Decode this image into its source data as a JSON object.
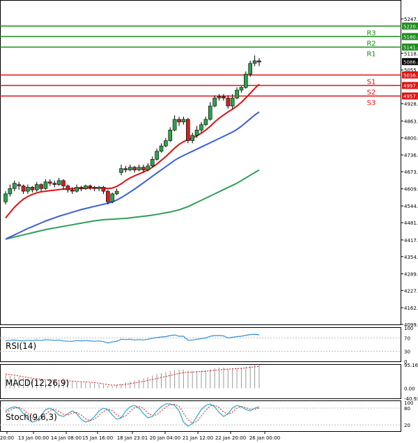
{
  "chart_data": {
    "type": "candlestick",
    "price_ticks": [
      "5247.4",
      "5118.2",
      "5055.5",
      "4928.5",
      "4863.6",
      "4800.4",
      "4736.3",
      "4673.6",
      "4609.0",
      "4544.8",
      "4481.7",
      "4417.1",
      "4354.6",
      "4289.8",
      "4227.1",
      "4162.5",
      "4099.8"
    ],
    "levels": [
      {
        "name": "R3",
        "value": 5220.2,
        "label": "5220.2",
        "color": "#1a8a1a"
      },
      {
        "name": "R2",
        "value": 5180.8,
        "label": "5180.8",
        "color": "#1a8a1a"
      },
      {
        "name": "R1",
        "value": 5141.4,
        "label": "5141.4",
        "color": "#1a8a1a"
      },
      {
        "name": "S1",
        "value": 5036.5,
        "label": "5036.5",
        "color": "#dd1111"
      },
      {
        "name": "S2",
        "value": 4997.1,
        "label": "4997.1",
        "color": "#dd1111"
      },
      {
        "name": "S3",
        "value": 4957.7,
        "label": "4957.7",
        "color": "#dd1111"
      }
    ],
    "current_price": {
      "value": 5086.8,
      "label": "5086.8"
    },
    "x_tick_labels": [
      "20:00",
      "13 Jan 00:00",
      "14 Jan 08:00",
      "15 Jan 16:00",
      "18 Jan 23:01",
      "20 Jan 04:00",
      "21 Jan 12:00",
      "22 Jan 20:00",
      "26 Jan 00:00"
    ],
    "candles": [
      [
        4560,
        4590,
        4550,
        4600
      ],
      [
        4590,
        4610,
        4580,
        4625
      ],
      [
        4610,
        4630,
        4600,
        4640
      ],
      [
        4625,
        4620,
        4605,
        4635
      ],
      [
        4620,
        4600,
        4590,
        4625
      ],
      [
        4600,
        4615,
        4590,
        4625
      ],
      [
        4615,
        4605,
        4595,
        4620
      ],
      [
        4605,
        4625,
        4598,
        4635
      ],
      [
        4625,
        4610,
        4600,
        4630
      ],
      [
        4610,
        4635,
        4605,
        4645
      ],
      [
        4635,
        4630,
        4620,
        4645
      ],
      [
        4630,
        4625,
        4615,
        4640
      ],
      [
        4625,
        4640,
        4620,
        4650
      ],
      [
        4640,
        4620,
        4605,
        4645
      ],
      [
        4620,
        4605,
        4595,
        4625
      ],
      [
        4605,
        4600,
        4590,
        4615
      ],
      [
        4600,
        4615,
        4595,
        4625
      ],
      [
        4615,
        4610,
        4600,
        4620
      ],
      [
        4610,
        4620,
        4605,
        4625
      ],
      [
        4620,
        4615,
        4605,
        4625
      ],
      [
        4615,
        4610,
        4600,
        4620
      ],
      [
        4610,
        4615,
        4600,
        4620
      ],
      [
        4615,
        4600,
        4590,
        4620
      ],
      [
        4600,
        4560,
        4550,
        4605
      ],
      [
        4560,
        4590,
        4555,
        4595
      ],
      [
        4590,
        4600,
        4585,
        4610
      ],
      [
        4670,
        4685,
        4660,
        4700
      ],
      [
        4685,
        4680,
        4670,
        4695
      ],
      [
        4680,
        4690,
        4675,
        4700
      ],
      [
        4690,
        4680,
        4670,
        4695
      ],
      [
        4680,
        4690,
        4675,
        4700
      ],
      [
        4690,
        4680,
        4670,
        4700
      ],
      [
        4680,
        4695,
        4675,
        4705
      ],
      [
        4695,
        4720,
        4690,
        4730
      ],
      [
        4720,
        4750,
        4715,
        4760
      ],
      [
        4750,
        4770,
        4745,
        4780
      ],
      [
        4770,
        4790,
        4765,
        4800
      ],
      [
        4790,
        4830,
        4785,
        4840
      ],
      [
        4830,
        4870,
        4825,
        4885
      ],
      [
        4870,
        4860,
        4845,
        4880
      ],
      [
        4860,
        4870,
        4850,
        4880
      ],
      [
        4870,
        4790,
        4780,
        4875
      ],
      [
        4790,
        4810,
        4780,
        4820
      ],
      [
        4810,
        4830,
        4800,
        4845
      ],
      [
        4830,
        4850,
        4820,
        4860
      ],
      [
        4850,
        4870,
        4845,
        4880
      ],
      [
        4870,
        4920,
        4865,
        4935
      ],
      [
        4920,
        4950,
        4915,
        4960
      ],
      [
        4950,
        4955,
        4940,
        4965
      ],
      [
        4955,
        4950,
        4940,
        4965
      ],
      [
        4950,
        4920,
        4910,
        4960
      ],
      [
        4920,
        4950,
        4910,
        4965
      ],
      [
        4950,
        4980,
        4945,
        4990
      ],
      [
        4980,
        4990,
        4970,
        4995
      ],
      [
        4990,
        5040,
        4985,
        5050
      ],
      [
        5040,
        5080,
        5030,
        5090
      ],
      [
        5080,
        5090,
        5070,
        5110
      ],
      [
        5090,
        5085,
        5070,
        5100
      ]
    ],
    "ma_fast": [
      4500,
      4520,
      4540,
      4556,
      4570,
      4580,
      4588,
      4594,
      4598,
      4600,
      4602,
      4604,
      4606,
      4608,
      4609,
      4610,
      4610,
      4610,
      4611,
      4612,
      4612,
      4612,
      4612,
      4610,
      4612,
      4618,
      4628,
      4640,
      4650,
      4658,
      4665,
      4672,
      4680,
      4690,
      4702,
      4716,
      4730,
      4746,
      4762,
      4776,
      4786,
      4794,
      4800,
      4808,
      4818,
      4830,
      4844,
      4860,
      4874,
      4886,
      4898,
      4908,
      4920,
      4934,
      4950,
      4968,
      4986,
      5002
    ],
    "ma_mid": [
      4420,
      4428,
      4436,
      4444,
      4452,
      4460,
      4467,
      4474,
      4481,
      4488,
      4494,
      4500,
      4506,
      4511,
      4516,
      4521,
      4526,
      4531,
      4535,
      4539,
      4543,
      4547,
      4551,
      4555,
      4560,
      4567,
      4576,
      4586,
      4597,
      4608,
      4620,
      4632,
      4644,
      4656,
      4668,
      4680,
      4692,
      4704,
      4716,
      4726,
      4734,
      4742,
      4750,
      4758,
      4766,
      4774,
      4782,
      4790,
      4798,
      4806,
      4814,
      4822,
      4832,
      4844,
      4858,
      4872,
      4886,
      4898
    ],
    "ma_slow": [
      4420,
      4424,
      4428,
      4432,
      4436,
      4440,
      4444,
      4448,
      4452,
      4456,
      4459,
      4462,
      4465,
      4468,
      4471,
      4474,
      4477,
      4480,
      4483,
      4486,
      4489,
      4491,
      4493,
      4494,
      4495,
      4496,
      4497,
      4498,
      4500,
      4502,
      4504,
      4506,
      4508,
      4510,
      4513,
      4516,
      4519,
      4522,
      4526,
      4530,
      4536,
      4542,
      4550,
      4558,
      4566,
      4574,
      4582,
      4590,
      4598,
      4606,
      4614,
      4622,
      4630,
      4640,
      4650,
      4660,
      4670,
      4680
    ],
    "rsi": {
      "label": "RSI(14)",
      "ticks": [
        "100",
        "70",
        "30",
        "0"
      ],
      "values": [
        62,
        63,
        64,
        62,
        61,
        63,
        62,
        64,
        62,
        65,
        64,
        63,
        64,
        61,
        60,
        60,
        62,
        61,
        62,
        61,
        60,
        61,
        59,
        55,
        58,
        60,
        66,
        65,
        66,
        64,
        65,
        64,
        66,
        69,
        71,
        73,
        74,
        77,
        79,
        75,
        75,
        63,
        64,
        66,
        68,
        70,
        75,
        77,
        77,
        76,
        70,
        72,
        74,
        75,
        78,
        80,
        81,
        79
      ]
    },
    "macd": {
      "label": "MACD(12,26,9)",
      "ticks": [
        "95.161",
        "0.00",
        "-40.937"
      ],
      "hist": [
        55,
        52,
        48,
        45,
        42,
        40,
        38,
        36,
        34,
        33,
        32,
        31,
        30,
        29,
        28,
        27,
        26,
        25,
        24,
        22,
        20,
        18,
        14,
        10,
        10,
        12,
        18,
        24,
        28,
        32,
        36,
        40,
        46,
        52,
        58,
        62,
        66,
        70,
        74,
        76,
        76,
        72,
        70,
        70,
        72,
        74,
        78,
        82,
        84,
        84,
        80,
        80,
        82,
        84,
        88,
        92,
        94,
        95
      ],
      "signal": [
        58,
        56,
        53,
        50,
        47,
        44,
        41,
        39,
        37,
        35,
        34,
        33,
        32,
        31,
        30,
        29,
        28,
        27,
        26,
        25,
        23,
        21,
        18,
        15,
        13,
        13,
        14,
        16,
        19,
        22,
        25,
        28,
        32,
        36,
        40,
        44,
        48,
        52,
        56,
        60,
        63,
        65,
        66,
        67,
        68,
        69,
        71,
        73,
        75,
        77,
        78,
        79,
        80,
        81,
        83,
        85,
        87,
        89
      ]
    },
    "stoch": {
      "label": "Stoch(9,6,3)",
      "ticks": [
        "100",
        "80",
        "20"
      ],
      "k": [
        70,
        80,
        85,
        80,
        60,
        40,
        30,
        35,
        55,
        75,
        80,
        70,
        55,
        50,
        60,
        70,
        60,
        40,
        30,
        35,
        50,
        70,
        80,
        75,
        55,
        40,
        45,
        70,
        85,
        90,
        80,
        60,
        45,
        50,
        70,
        85,
        95,
        95,
        90,
        70,
        30,
        15,
        25,
        50,
        75,
        90,
        95,
        85,
        65,
        50,
        60,
        80,
        90,
        85,
        75,
        70,
        80,
        85
      ],
      "d": [
        65,
        72,
        80,
        82,
        75,
        60,
        45,
        38,
        42,
        58,
        72,
        76,
        68,
        58,
        55,
        62,
        64,
        55,
        42,
        35,
        40,
        55,
        68,
        76,
        70,
        56,
        46,
        52,
        68,
        82,
        86,
        78,
        62,
        52,
        56,
        70,
        84,
        92,
        94,
        86,
        62,
        38,
        26,
        32,
        52,
        72,
        88,
        90,
        82,
        66,
        58,
        66,
        80,
        86,
        82,
        76,
        76,
        80
      ]
    }
  }
}
